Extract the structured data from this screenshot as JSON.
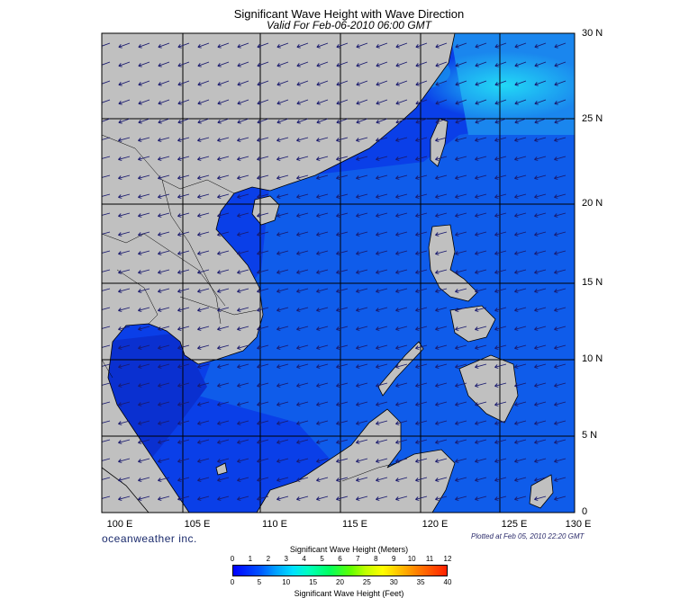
{
  "header": {
    "title": "Significant Wave Height with Wave Direction",
    "valid": "Valid For Feb-06-2010 06:00 GMT"
  },
  "axes": {
    "lat_labels": [
      "30 N",
      "25 N",
      "20 N",
      "15 N",
      "10 N",
      "5 N",
      "0"
    ],
    "lon_labels": [
      "100 E",
      "105 E",
      "110 E",
      "115 E",
      "120 E",
      "125 E",
      "130 E"
    ]
  },
  "footer": {
    "brand": "oceanweather inc.",
    "plotted": "Plotted at Feb 05, 2010 22:20 GMT"
  },
  "colorbar": {
    "meters_title": "Significant Wave Height (Meters)",
    "feet_title": "Significant Wave Height (Feet)",
    "meters_ticks": [
      "0",
      "1",
      "2",
      "3",
      "4",
      "5",
      "6",
      "7",
      "8",
      "9",
      "10",
      "11",
      "12"
    ],
    "feet_ticks": [
      "0",
      "5",
      "10",
      "15",
      "20",
      "25",
      "30",
      "35",
      "40"
    ]
  },
  "colors": {
    "land": "#c0c0c0",
    "ocean_low": "#0033e6",
    "ocean_mid": "#0f6be8",
    "ocean_high": "#18c4f0",
    "arrow": "#1a1a6e"
  }
}
